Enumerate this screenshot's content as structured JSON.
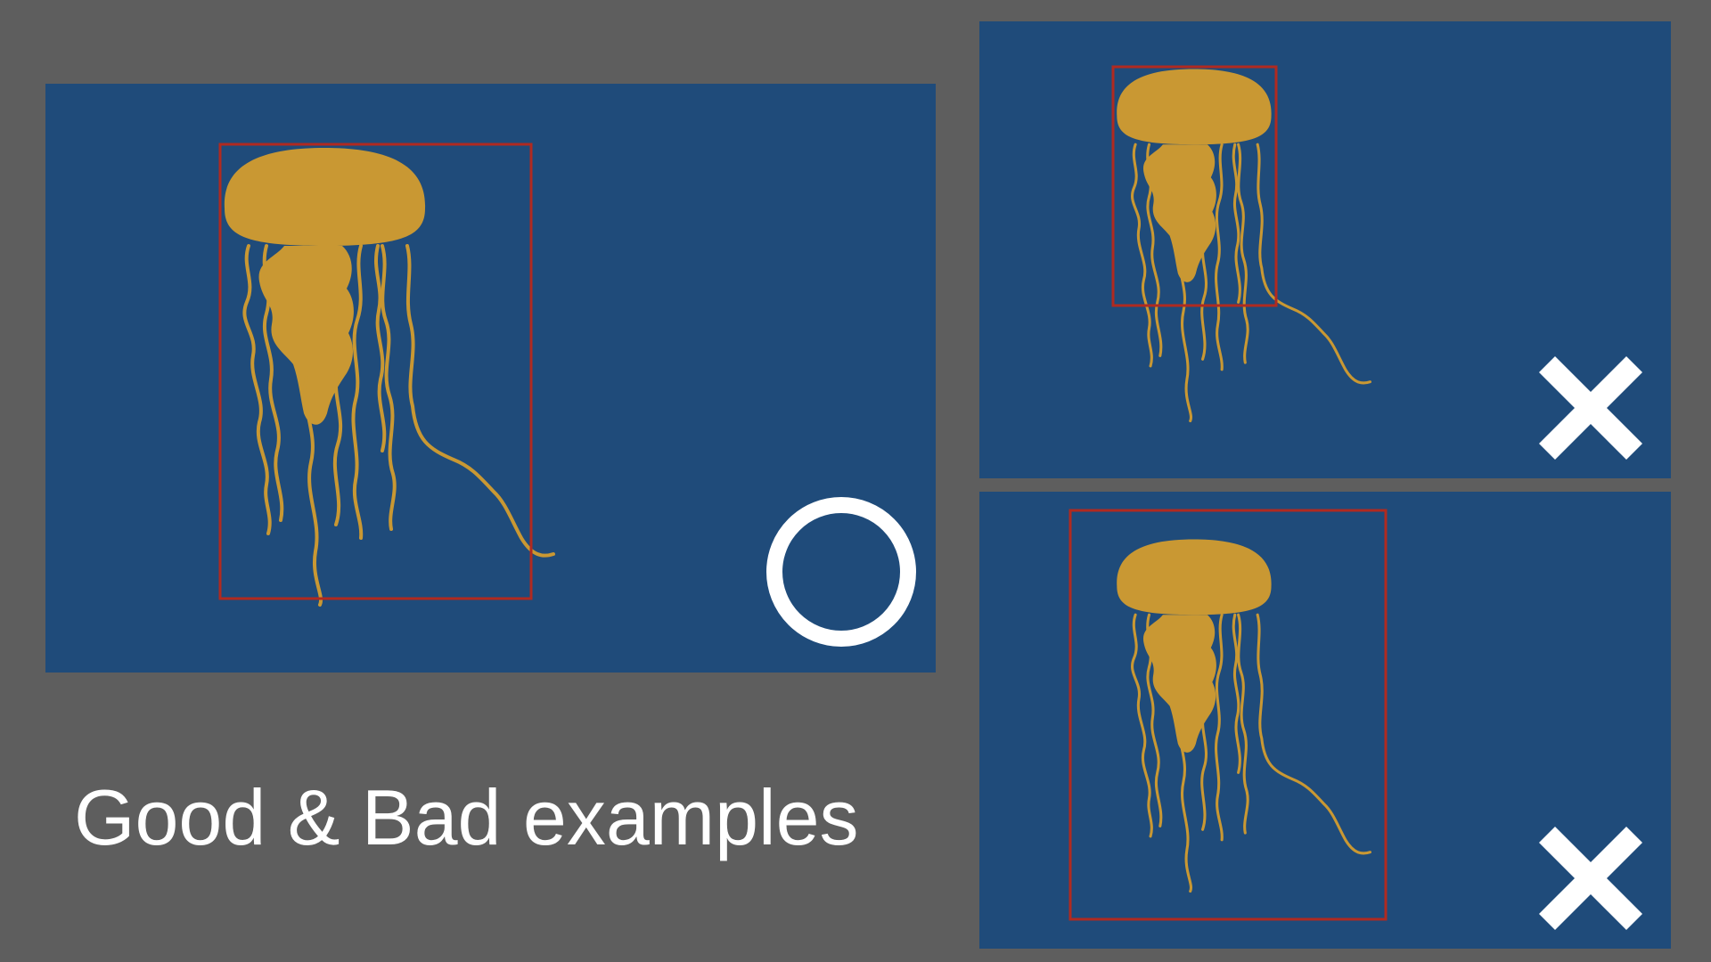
{
  "caption": "Good & Bad examples",
  "colors": {
    "background": "#5e5e5e",
    "panel": "#1f4b7a",
    "jellyfish": "#c99833",
    "bounding_box": "#b02a20",
    "mark": "#ffffff"
  },
  "examples": [
    {
      "verdict": "good",
      "mark": "circle-icon",
      "box_fit": "tight"
    },
    {
      "verdict": "bad",
      "mark": "cross-icon",
      "box_fit": "too-small"
    },
    {
      "verdict": "bad",
      "mark": "cross-icon",
      "box_fit": "too-large"
    }
  ]
}
